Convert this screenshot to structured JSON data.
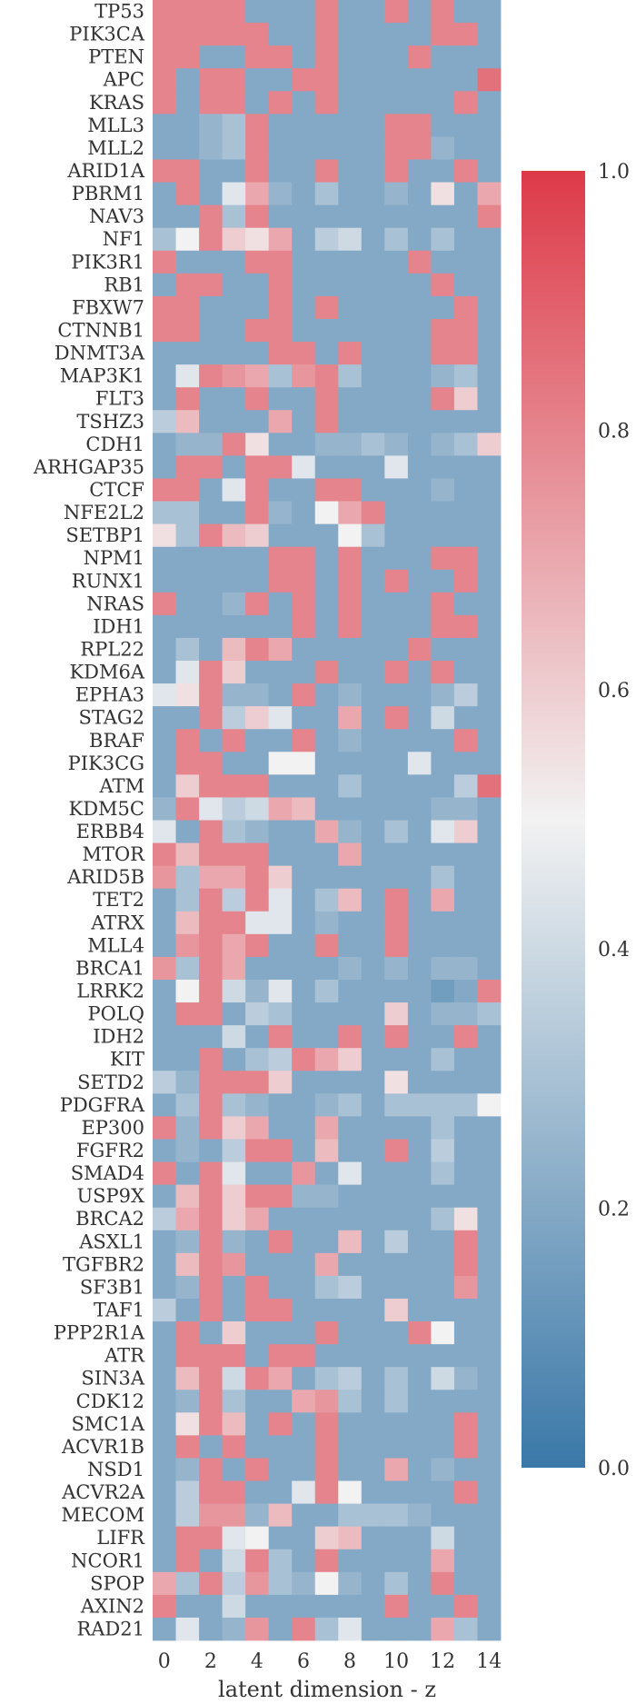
{
  "chart_data": {
    "type": "heatmap",
    "title": "",
    "xlabel": "latent dimension - z",
    "ylabel": "",
    "x_ticks": [
      "0",
      "2",
      "4",
      "6",
      "8",
      "10",
      "12",
      "14"
    ],
    "x_values": [
      0,
      1,
      2,
      3,
      4,
      5,
      6,
      7,
      8,
      9,
      10,
      11,
      12,
      13,
      14
    ],
    "rows": [
      "TP53",
      "PIK3CA",
      "PTEN",
      "APC",
      "KRAS",
      "MLL3",
      "MLL2",
      "ARID1A",
      "PBRM1",
      "NAV3",
      "NF1",
      "PIK3R1",
      "RB1",
      "FBXW7",
      "CTNNB1",
      "DNMT3A",
      "MAP3K1",
      "FLT3",
      "TSHZ3",
      "CDH1",
      "ARHGAP35",
      "CTCF",
      "NFE2L2",
      "SETBP1",
      "NPM1",
      "RUNX1",
      "NRAS",
      "IDH1",
      "RPL22",
      "KDM6A",
      "EPHA3",
      "STAG2",
      "BRAF",
      "PIK3CG",
      "ATM",
      "KDM5C",
      "ERBB4",
      "MTOR",
      "ARID5B",
      "TET2",
      "ATRX",
      "MLL4",
      "BRCA1",
      "LRRK2",
      "POLQ",
      "IDH2",
      "KIT",
      "SETD2",
      "PDGFRA",
      "EP300",
      "FGFR2",
      "SMAD4",
      "USP9X",
      "BRCA2",
      "ASXL1",
      "TGFBR2",
      "SF3B1",
      "TAF1",
      "PPP2R1A",
      "ATR",
      "SIN3A",
      "CDK12",
      "SMC1A",
      "ACVR1B",
      "NSD1",
      "ACVR2A",
      "MECOM",
      "LIFR",
      "NCOR1",
      "SPOP",
      "AXIN2",
      "RAD21"
    ],
    "values": [
      [
        0.8,
        0.8,
        0.8,
        0.8,
        0.2,
        0.2,
        0.2,
        0.8,
        0.2,
        0.2,
        0.8,
        0.2,
        0.8,
        0.2,
        0.2
      ],
      [
        0.8,
        0.8,
        0.8,
        0.8,
        0.8,
        0.2,
        0.2,
        0.8,
        0.2,
        0.2,
        0.2,
        0.2,
        0.8,
        0.8,
        0.2
      ],
      [
        0.8,
        0.8,
        0.2,
        0.2,
        0.8,
        0.8,
        0.2,
        0.8,
        0.2,
        0.2,
        0.2,
        0.8,
        0.2,
        0.2,
        0.2
      ],
      [
        0.8,
        0.2,
        0.8,
        0.8,
        0.2,
        0.2,
        0.8,
        0.8,
        0.2,
        0.2,
        0.2,
        0.2,
        0.2,
        0.2,
        0.85
      ],
      [
        0.8,
        0.2,
        0.8,
        0.8,
        0.2,
        0.8,
        0.2,
        0.8,
        0.2,
        0.2,
        0.2,
        0.2,
        0.2,
        0.8,
        0.2
      ],
      [
        0.2,
        0.2,
        0.25,
        0.3,
        0.8,
        0.2,
        0.2,
        0.2,
        0.2,
        0.2,
        0.8,
        0.8,
        0.2,
        0.2,
        0.2
      ],
      [
        0.2,
        0.2,
        0.25,
        0.3,
        0.8,
        0.2,
        0.2,
        0.2,
        0.2,
        0.2,
        0.8,
        0.8,
        0.25,
        0.2,
        0.2
      ],
      [
        0.8,
        0.8,
        0.2,
        0.2,
        0.8,
        0.2,
        0.2,
        0.8,
        0.2,
        0.2,
        0.8,
        0.2,
        0.2,
        0.8,
        0.2
      ],
      [
        0.2,
        0.8,
        0.2,
        0.45,
        0.7,
        0.25,
        0.2,
        0.3,
        0.2,
        0.2,
        0.25,
        0.2,
        0.55,
        0.2,
        0.7
      ],
      [
        0.2,
        0.2,
        0.8,
        0.3,
        0.8,
        0.2,
        0.2,
        0.2,
        0.2,
        0.2,
        0.2,
        0.2,
        0.2,
        0.2,
        0.8
      ],
      [
        0.3,
        0.5,
        0.8,
        0.6,
        0.55,
        0.7,
        0.2,
        0.35,
        0.4,
        0.2,
        0.3,
        0.2,
        0.3,
        0.2,
        0.2
      ],
      [
        0.8,
        0.2,
        0.2,
        0.2,
        0.8,
        0.8,
        0.2,
        0.2,
        0.2,
        0.2,
        0.2,
        0.8,
        0.2,
        0.2,
        0.2
      ],
      [
        0.2,
        0.8,
        0.8,
        0.2,
        0.2,
        0.8,
        0.2,
        0.2,
        0.2,
        0.2,
        0.2,
        0.2,
        0.8,
        0.2,
        0.2
      ],
      [
        0.8,
        0.8,
        0.2,
        0.2,
        0.2,
        0.8,
        0.2,
        0.8,
        0.2,
        0.2,
        0.2,
        0.2,
        0.2,
        0.8,
        0.2
      ],
      [
        0.8,
        0.8,
        0.2,
        0.2,
        0.8,
        0.8,
        0.2,
        0.2,
        0.2,
        0.2,
        0.2,
        0.2,
        0.8,
        0.8,
        0.2
      ],
      [
        0.2,
        0.2,
        0.2,
        0.2,
        0.2,
        0.8,
        0.8,
        0.2,
        0.8,
        0.2,
        0.2,
        0.2,
        0.8,
        0.8,
        0.2
      ],
      [
        0.2,
        0.45,
        0.8,
        0.75,
        0.7,
        0.3,
        0.75,
        0.8,
        0.3,
        0.2,
        0.2,
        0.2,
        0.25,
        0.3,
        0.2
      ],
      [
        0.2,
        0.8,
        0.2,
        0.2,
        0.8,
        0.2,
        0.2,
        0.8,
        0.2,
        0.2,
        0.2,
        0.2,
        0.8,
        0.6,
        0.2
      ],
      [
        0.35,
        0.65,
        0.2,
        0.2,
        0.2,
        0.7,
        0.2,
        0.8,
        0.2,
        0.2,
        0.2,
        0.2,
        0.2,
        0.2,
        0.2
      ],
      [
        0.2,
        0.25,
        0.25,
        0.8,
        0.55,
        0.2,
        0.2,
        0.25,
        0.25,
        0.3,
        0.25,
        0.2,
        0.25,
        0.3,
        0.6
      ],
      [
        0.2,
        0.8,
        0.8,
        0.2,
        0.8,
        0.8,
        0.45,
        0.2,
        0.2,
        0.2,
        0.45,
        0.2,
        0.2,
        0.2,
        0.2
      ],
      [
        0.8,
        0.8,
        0.2,
        0.45,
        0.8,
        0.2,
        0.2,
        0.8,
        0.8,
        0.2,
        0.2,
        0.2,
        0.25,
        0.2,
        0.2
      ],
      [
        0.3,
        0.3,
        0.2,
        0.2,
        0.8,
        0.25,
        0.2,
        0.5,
        0.7,
        0.8,
        0.2,
        0.2,
        0.2,
        0.2,
        0.2
      ],
      [
        0.55,
        0.3,
        0.8,
        0.65,
        0.6,
        0.2,
        0.2,
        0.2,
        0.5,
        0.3,
        0.2,
        0.2,
        0.2,
        0.2,
        0.2
      ],
      [
        0.2,
        0.2,
        0.2,
        0.2,
        0.2,
        0.8,
        0.8,
        0.2,
        0.8,
        0.2,
        0.2,
        0.2,
        0.8,
        0.8,
        0.2
      ],
      [
        0.2,
        0.2,
        0.2,
        0.2,
        0.2,
        0.8,
        0.8,
        0.2,
        0.8,
        0.2,
        0.8,
        0.2,
        0.2,
        0.8,
        0.2
      ],
      [
        0.8,
        0.2,
        0.2,
        0.25,
        0.8,
        0.2,
        0.8,
        0.2,
        0.8,
        0.2,
        0.2,
        0.2,
        0.8,
        0.2,
        0.2
      ],
      [
        0.2,
        0.2,
        0.2,
        0.2,
        0.2,
        0.2,
        0.8,
        0.2,
        0.8,
        0.2,
        0.2,
        0.2,
        0.8,
        0.8,
        0.2
      ],
      [
        0.2,
        0.3,
        0.2,
        0.65,
        0.8,
        0.7,
        0.2,
        0.2,
        0.2,
        0.2,
        0.2,
        0.8,
        0.2,
        0.2,
        0.2
      ],
      [
        0.2,
        0.45,
        0.8,
        0.6,
        0.2,
        0.2,
        0.2,
        0.8,
        0.2,
        0.2,
        0.8,
        0.2,
        0.8,
        0.2,
        0.2
      ],
      [
        0.45,
        0.55,
        0.8,
        0.25,
        0.25,
        0.2,
        0.8,
        0.2,
        0.25,
        0.2,
        0.2,
        0.2,
        0.25,
        0.35,
        0.2
      ],
      [
        0.2,
        0.2,
        0.8,
        0.35,
        0.6,
        0.45,
        0.2,
        0.2,
        0.7,
        0.2,
        0.8,
        0.2,
        0.4,
        0.2,
        0.2
      ],
      [
        0.2,
        0.8,
        0.2,
        0.8,
        0.2,
        0.2,
        0.8,
        0.2,
        0.25,
        0.2,
        0.2,
        0.2,
        0.2,
        0.8,
        0.2
      ],
      [
        0.2,
        0.8,
        0.8,
        0.2,
        0.2,
        0.5,
        0.5,
        0.2,
        0.2,
        0.2,
        0.2,
        0.45,
        0.2,
        0.2,
        0.2
      ],
      [
        0.2,
        0.6,
        0.8,
        0.8,
        0.8,
        0.2,
        0.2,
        0.2,
        0.3,
        0.2,
        0.2,
        0.2,
        0.2,
        0.35,
        0.85
      ],
      [
        0.25,
        0.8,
        0.45,
        0.35,
        0.4,
        0.7,
        0.65,
        0.2,
        0.2,
        0.2,
        0.2,
        0.2,
        0.25,
        0.25,
        0.2
      ],
      [
        0.45,
        0.2,
        0.8,
        0.3,
        0.25,
        0.2,
        0.2,
        0.7,
        0.25,
        0.2,
        0.3,
        0.2,
        0.45,
        0.6,
        0.2
      ],
      [
        0.8,
        0.65,
        0.8,
        0.8,
        0.8,
        0.2,
        0.2,
        0.2,
        0.7,
        0.2,
        0.2,
        0.2,
        0.2,
        0.2,
        0.2
      ],
      [
        0.75,
        0.3,
        0.7,
        0.7,
        0.8,
        0.6,
        0.2,
        0.2,
        0.2,
        0.2,
        0.2,
        0.2,
        0.3,
        0.2,
        0.2
      ],
      [
        0.2,
        0.3,
        0.8,
        0.35,
        0.8,
        0.45,
        0.2,
        0.3,
        0.65,
        0.2,
        0.8,
        0.2,
        0.7,
        0.2,
        0.2
      ],
      [
        0.2,
        0.65,
        0.8,
        0.8,
        0.45,
        0.45,
        0.2,
        0.25,
        0.2,
        0.2,
        0.8,
        0.2,
        0.2,
        0.2,
        0.2
      ],
      [
        0.2,
        0.75,
        0.8,
        0.7,
        0.8,
        0.2,
        0.2,
        0.8,
        0.2,
        0.2,
        0.8,
        0.2,
        0.2,
        0.2,
        0.2
      ],
      [
        0.75,
        0.3,
        0.8,
        0.7,
        0.2,
        0.2,
        0.2,
        0.2,
        0.25,
        0.2,
        0.25,
        0.2,
        0.25,
        0.25,
        0.2
      ],
      [
        0.2,
        0.5,
        0.8,
        0.4,
        0.25,
        0.45,
        0.2,
        0.3,
        0.2,
        0.2,
        0.2,
        0.2,
        0.15,
        0.2,
        0.8
      ],
      [
        0.2,
        0.8,
        0.8,
        0.2,
        0.35,
        0.3,
        0.2,
        0.2,
        0.2,
        0.2,
        0.6,
        0.2,
        0.25,
        0.25,
        0.3
      ],
      [
        0.2,
        0.2,
        0.2,
        0.4,
        0.2,
        0.8,
        0.2,
        0.2,
        0.8,
        0.2,
        0.8,
        0.2,
        0.2,
        0.8,
        0.2
      ],
      [
        0.2,
        0.2,
        0.8,
        0.2,
        0.3,
        0.35,
        0.8,
        0.7,
        0.6,
        0.2,
        0.2,
        0.2,
        0.3,
        0.2,
        0.2
      ],
      [
        0.35,
        0.25,
        0.8,
        0.8,
        0.8,
        0.6,
        0.2,
        0.2,
        0.2,
        0.2,
        0.55,
        0.2,
        0.2,
        0.2,
        0.2
      ],
      [
        0.2,
        0.3,
        0.8,
        0.3,
        0.25,
        0.2,
        0.2,
        0.25,
        0.3,
        0.2,
        0.3,
        0.3,
        0.3,
        0.3,
        0.5
      ],
      [
        0.8,
        0.25,
        0.8,
        0.6,
        0.7,
        0.2,
        0.2,
        0.7,
        0.2,
        0.2,
        0.2,
        0.2,
        0.3,
        0.2,
        0.2
      ],
      [
        0.2,
        0.25,
        0.2,
        0.35,
        0.8,
        0.8,
        0.2,
        0.65,
        0.2,
        0.2,
        0.8,
        0.2,
        0.35,
        0.2,
        0.2
      ],
      [
        0.8,
        0.2,
        0.8,
        0.45,
        0.2,
        0.2,
        0.75,
        0.2,
        0.45,
        0.2,
        0.2,
        0.2,
        0.3,
        0.2,
        0.2
      ],
      [
        0.2,
        0.65,
        0.8,
        0.6,
        0.8,
        0.8,
        0.25,
        0.25,
        0.2,
        0.2,
        0.2,
        0.2,
        0.2,
        0.2,
        0.2
      ],
      [
        0.35,
        0.7,
        0.8,
        0.6,
        0.7,
        0.2,
        0.2,
        0.2,
        0.2,
        0.2,
        0.2,
        0.2,
        0.3,
        0.55,
        0.2
      ],
      [
        0.2,
        0.25,
        0.8,
        0.25,
        0.2,
        0.8,
        0.2,
        0.2,
        0.65,
        0.2,
        0.35,
        0.2,
        0.2,
        0.8,
        0.2
      ],
      [
        0.2,
        0.65,
        0.8,
        0.75,
        0.2,
        0.2,
        0.2,
        0.7,
        0.2,
        0.2,
        0.2,
        0.2,
        0.2,
        0.8,
        0.2
      ],
      [
        0.2,
        0.25,
        0.8,
        0.2,
        0.8,
        0.2,
        0.2,
        0.3,
        0.35,
        0.2,
        0.2,
        0.2,
        0.2,
        0.75,
        0.2
      ],
      [
        0.35,
        0.2,
        0.8,
        0.2,
        0.8,
        0.8,
        0.2,
        0.2,
        0.2,
        0.2,
        0.6,
        0.2,
        0.2,
        0.2,
        0.2
      ],
      [
        0.2,
        0.8,
        0.2,
        0.6,
        0.2,
        0.2,
        0.2,
        0.8,
        0.2,
        0.2,
        0.2,
        0.8,
        0.5,
        0.2,
        0.2
      ],
      [
        0.2,
        0.8,
        0.8,
        0.8,
        0.2,
        0.8,
        0.8,
        0.2,
        0.2,
        0.2,
        0.2,
        0.2,
        0.2,
        0.2,
        0.2
      ],
      [
        0.2,
        0.65,
        0.8,
        0.4,
        0.8,
        0.7,
        0.2,
        0.3,
        0.35,
        0.2,
        0.3,
        0.2,
        0.4,
        0.25,
        0.2
      ],
      [
        0.2,
        0.25,
        0.8,
        0.3,
        0.2,
        0.2,
        0.7,
        0.75,
        0.3,
        0.2,
        0.3,
        0.2,
        0.2,
        0.2,
        0.2
      ],
      [
        0.2,
        0.55,
        0.8,
        0.65,
        0.2,
        0.8,
        0.2,
        0.8,
        0.2,
        0.2,
        0.2,
        0.2,
        0.2,
        0.8,
        0.2
      ],
      [
        0.2,
        0.8,
        0.2,
        0.8,
        0.2,
        0.2,
        0.2,
        0.8,
        0.2,
        0.2,
        0.2,
        0.2,
        0.2,
        0.8,
        0.2
      ],
      [
        0.2,
        0.25,
        0.8,
        0.2,
        0.8,
        0.2,
        0.2,
        0.8,
        0.2,
        0.2,
        0.7,
        0.2,
        0.25,
        0.2,
        0.2
      ],
      [
        0.2,
        0.35,
        0.8,
        0.8,
        0.2,
        0.2,
        0.45,
        0.8,
        0.5,
        0.2,
        0.2,
        0.2,
        0.2,
        0.8,
        0.2
      ],
      [
        0.2,
        0.35,
        0.75,
        0.75,
        0.25,
        0.65,
        0.2,
        0.2,
        0.3,
        0.3,
        0.3,
        0.25,
        0.2,
        0.2,
        0.2
      ],
      [
        0.2,
        0.8,
        0.8,
        0.45,
        0.5,
        0.2,
        0.2,
        0.6,
        0.65,
        0.2,
        0.2,
        0.2,
        0.4,
        0.2,
        0.2
      ],
      [
        0.2,
        0.8,
        0.2,
        0.4,
        0.8,
        0.3,
        0.2,
        0.8,
        0.2,
        0.2,
        0.2,
        0.2,
        0.7,
        0.2,
        0.2
      ],
      [
        0.7,
        0.3,
        0.8,
        0.35,
        0.75,
        0.3,
        0.25,
        0.5,
        0.25,
        0.2,
        0.3,
        0.2,
        0.8,
        0.2,
        0.2
      ],
      [
        0.8,
        0.2,
        0.2,
        0.4,
        0.2,
        0.2,
        0.2,
        0.2,
        0.2,
        0.2,
        0.8,
        0.2,
        0.2,
        0.8,
        0.2
      ],
      [
        0.2,
        0.45,
        0.2,
        0.25,
        0.75,
        0.2,
        0.8,
        0.3,
        0.45,
        0.2,
        0.2,
        0.2,
        0.7,
        0.3,
        0.2
      ]
    ],
    "colorbar": {
      "min": 0.0,
      "max": 1.0,
      "ticks": [
        "0.0",
        "0.2",
        "0.4",
        "0.6",
        "0.8",
        "1.0"
      ],
      "low_color": "#3a78a8",
      "mid_color": "#f2f2f2",
      "high_color": "#dd3a48"
    }
  }
}
